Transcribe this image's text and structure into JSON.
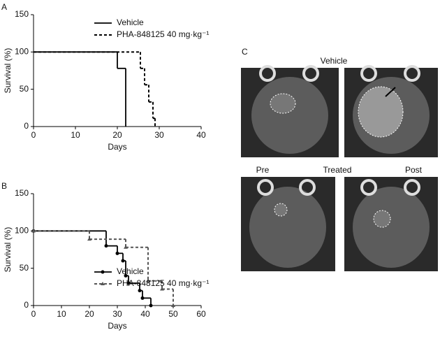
{
  "chart_data": [
    {
      "type": "step",
      "panel_label": "A",
      "xlabel": "Days",
      "ylabel": "Survival (%)",
      "xlim": [
        0,
        40
      ],
      "xticks": [
        0,
        10,
        20,
        30,
        40
      ],
      "ylim": [
        0,
        150
      ],
      "yticks": [
        0,
        50,
        100,
        150
      ],
      "series": [
        {
          "name": "Vehicle",
          "color": "#000000",
          "dashed": false,
          "marker": "none",
          "x": [
            0,
            20,
            22
          ],
          "values": [
            100,
            78,
            0
          ]
        },
        {
          "name": "PHA-848125 40 mg·kg⁻¹",
          "color": "#000000",
          "dashed": true,
          "marker": "none",
          "x": [
            0,
            25.5,
            26.5,
            27.5,
            28.5,
            29
          ],
          "values": [
            100,
            78,
            56,
            33,
            11,
            0
          ]
        }
      ]
    },
    {
      "type": "step",
      "panel_label": "B",
      "xlabel": "Days",
      "ylabel": "Survival (%)",
      "xlim": [
        0,
        60
      ],
      "xticks": [
        0,
        10,
        20,
        30,
        40,
        50,
        60
      ],
      "ylim": [
        0,
        150
      ],
      "yticks": [
        0,
        50,
        100,
        150
      ],
      "series": [
        {
          "name": "Vehicle",
          "color": "#000000",
          "dashed": false,
          "marker": "circle",
          "x": [
            0,
            26,
            30,
            32,
            33,
            34,
            38,
            39,
            42
          ],
          "values": [
            100,
            80,
            70,
            60,
            40,
            30,
            20,
            10,
            0
          ]
        },
        {
          "name": "PHA-848125 40 mg·kg⁻¹",
          "color": "#555555",
          "dashed": true,
          "marker": "triangle",
          "x": [
            0,
            20,
            33,
            41,
            46,
            50
          ],
          "values": [
            100,
            89,
            78,
            33,
            22,
            0
          ]
        }
      ]
    }
  ],
  "panel_c": {
    "label": "C",
    "top_title": "Vehicle",
    "bottom_left": "Pre",
    "bottom_middle": "Treated",
    "bottom_right": "Post"
  }
}
